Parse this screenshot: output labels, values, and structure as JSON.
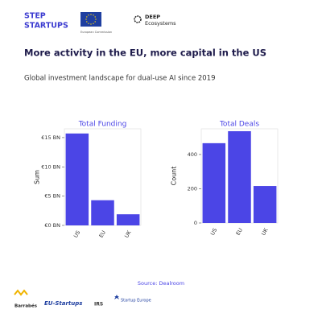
{
  "header": {
    "logo_left": [
      "STEP",
      "STARTUPS"
    ],
    "logo_center": "European Commission",
    "logo_right": [
      "DEEP",
      "Ecosystems"
    ]
  },
  "title": "More activity in the EU, more capital in the US",
  "subtitle": "Global investment landscape for dual-use AI since 2019",
  "chart_data": [
    {
      "type": "bar",
      "title": "Total  Funding",
      "ylabel": "Sum",
      "categories": [
        "US",
        "EU",
        "UK"
      ],
      "values": [
        15.7,
        4.3,
        1.9
      ],
      "color": "#4b45e6",
      "ylim": [
        0,
        16.5
      ],
      "yticks": [
        {
          "value": 0,
          "label": "€0 BN"
        },
        {
          "value": 5,
          "label": "€5 BN"
        },
        {
          "value": 10,
          "label": "€10 BN"
        },
        {
          "value": 15,
          "label": "€15 BN"
        }
      ]
    },
    {
      "type": "bar",
      "title": "Total  Deals",
      "ylabel": "Count",
      "categories": [
        "US",
        "EU",
        "UK"
      ],
      "values": [
        466,
        536,
        216
      ],
      "color": "#4b45e6",
      "ylim": [
        0,
        550
      ],
      "yticks": [
        0,
        200,
        400
      ]
    }
  ],
  "source": "Source:  Dealroom",
  "footer_logos": [
    "Barrabés",
    "EU-Startups",
    "IRS",
    "Startup Europe"
  ]
}
